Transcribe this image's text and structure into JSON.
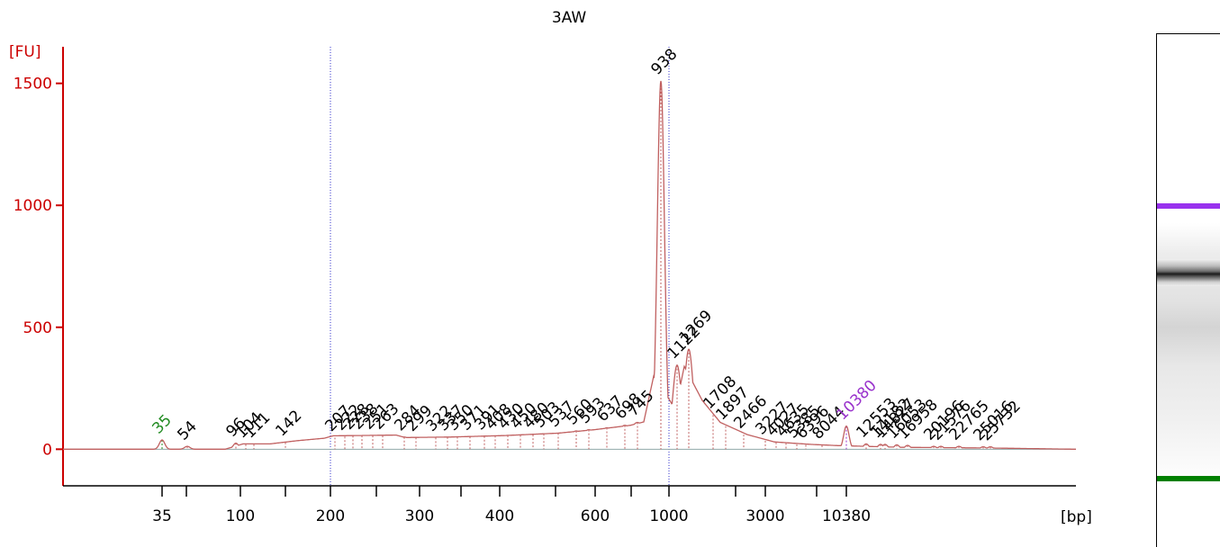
{
  "chart_data": {
    "type": "line",
    "title": "3AW",
    "ylabel": "[FU]",
    "xlabel": "[bp]",
    "ylim": [
      -150,
      1650
    ],
    "yticks": [
      0,
      500,
      1000,
      1500
    ],
    "x_ticks": [
      {
        "label": "35",
        "pos": 180
      },
      {
        "label": "",
        "pos": 207
      },
      {
        "label": "100",
        "pos": 267
      },
      {
        "label": "",
        "pos": 317
      },
      {
        "label": "200",
        "pos": 367
      },
      {
        "label": "",
        "pos": 418
      },
      {
        "label": "300",
        "pos": 466
      },
      {
        "label": "",
        "pos": 512
      },
      {
        "label": "400",
        "pos": 555
      },
      {
        "label": "",
        "pos": 617
      },
      {
        "label": "600",
        "pos": 661
      },
      {
        "label": "",
        "pos": 701
      },
      {
        "label": "1000",
        "pos": 743
      },
      {
        "label": "",
        "pos": 817
      },
      {
        "label": "3000",
        "pos": 850
      },
      {
        "label": "",
        "pos": 907
      },
      {
        "label": "10380",
        "pos": 940
      }
    ],
    "marker_lines": [
      367,
      743
    ],
    "peaks": [
      {
        "label": "35",
        "pos": 180,
        "value": 38,
        "color": "#228b22"
      },
      {
        "label": "54",
        "pos": 208,
        "value": 12
      },
      {
        "label": "96",
        "pos": 262,
        "value": 25
      },
      {
        "label": "104",
        "pos": 273,
        "value": 20
      },
      {
        "label": "111",
        "pos": 282,
        "value": 20
      },
      {
        "label": "142",
        "pos": 317,
        "value": 28
      },
      {
        "label": "207",
        "pos": 372,
        "value": 48
      },
      {
        "label": "222",
        "pos": 383,
        "value": 52
      },
      {
        "label": "228",
        "pos": 392,
        "value": 55
      },
      {
        "label": "238",
        "pos": 402,
        "value": 56
      },
      {
        "label": "251",
        "pos": 414,
        "value": 56
      },
      {
        "label": "263",
        "pos": 425,
        "value": 56
      },
      {
        "label": "284",
        "pos": 449,
        "value": 50
      },
      {
        "label": "299",
        "pos": 462,
        "value": 48
      },
      {
        "label": "322",
        "pos": 484,
        "value": 48
      },
      {
        "label": "337",
        "pos": 497,
        "value": 50
      },
      {
        "label": "350",
        "pos": 508,
        "value": 51
      },
      {
        "label": "371",
        "pos": 522,
        "value": 52
      },
      {
        "label": "391",
        "pos": 538,
        "value": 54
      },
      {
        "label": "408",
        "pos": 550,
        "value": 55
      },
      {
        "label": "430",
        "pos": 564,
        "value": 57
      },
      {
        "label": "450",
        "pos": 578,
        "value": 58
      },
      {
        "label": "480",
        "pos": 592,
        "value": 60
      },
      {
        "label": "503",
        "pos": 604,
        "value": 63
      },
      {
        "label": "537",
        "pos": 620,
        "value": 66
      },
      {
        "label": "560",
        "pos": 640,
        "value": 75
      },
      {
        "label": "593",
        "pos": 654,
        "value": 80
      },
      {
        "label": "637",
        "pos": 674,
        "value": 88
      },
      {
        "label": "698",
        "pos": 694,
        "value": 98
      },
      {
        "label": "745",
        "pos": 708,
        "value": 110
      },
      {
        "label": "938",
        "pos": 734,
        "value": 1510
      },
      {
        "label": "1122",
        "pos": 752,
        "value": 345
      },
      {
        "label": "1269",
        "pos": 765,
        "value": 410
      },
      {
        "label": "1708",
        "pos": 792,
        "value": 140
      },
      {
        "label": "1897",
        "pos": 806,
        "value": 95
      },
      {
        "label": "2466",
        "pos": 826,
        "value": 60
      },
      {
        "label": "3227",
        "pos": 850,
        "value": 35
      },
      {
        "label": "4027",
        "pos": 862,
        "value": 28
      },
      {
        "label": "4635",
        "pos": 873,
        "value": 25
      },
      {
        "label": "5385",
        "pos": 885,
        "value": 20
      },
      {
        "label": "6396",
        "pos": 895,
        "value": 18
      },
      {
        "label": "8044",
        "pos": 913,
        "value": 16
      },
      {
        "label": "10380",
        "pos": 940,
        "value": 95,
        "color": "#9932cc"
      },
      {
        "label": "12553",
        "pos": 962,
        "value": 22
      },
      {
        "label": "14182",
        "pos": 978,
        "value": 20
      },
      {
        "label": "14827",
        "pos": 983,
        "value": 20
      },
      {
        "label": "16053",
        "pos": 996,
        "value": 18
      },
      {
        "label": "16958",
        "pos": 1008,
        "value": 16
      },
      {
        "label": "20196",
        "pos": 1037,
        "value": 12
      },
      {
        "label": "21576",
        "pos": 1045,
        "value": 12
      },
      {
        "label": "22765",
        "pos": 1065,
        "value": 12
      },
      {
        "label": "25016",
        "pos": 1092,
        "value": 10
      },
      {
        "label": "25732",
        "pos": 1100,
        "value": 10
      }
    ],
    "colors": {
      "axis": "#cc0000",
      "trace": "#c06060",
      "marker_line": "#3333cc",
      "baseline": "#8fa8a8",
      "text": "#000000"
    }
  },
  "gel": {
    "upper_marker_color": "#9932ee",
    "lower_marker_color": "#008000"
  }
}
